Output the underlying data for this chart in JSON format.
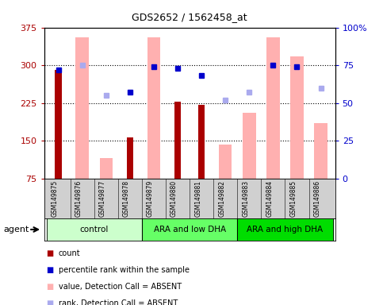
{
  "title": "GDS2652 / 1562458_at",
  "samples": [
    "GSM149875",
    "GSM149876",
    "GSM149877",
    "GSM149878",
    "GSM149879",
    "GSM149880",
    "GSM149881",
    "GSM149882",
    "GSM149883",
    "GSM149884",
    "GSM149885",
    "GSM149886"
  ],
  "groups": [
    {
      "label": "control",
      "color": "#ccffcc",
      "start": 0,
      "end": 3
    },
    {
      "label": "ARA and low DHA",
      "color": "#66ff66",
      "start": 4,
      "end": 7
    },
    {
      "label": "ARA and high DHA",
      "color": "#00dd00",
      "start": 8,
      "end": 11
    }
  ],
  "count_values": [
    290,
    null,
    null,
    157,
    null,
    228,
    222,
    null,
    null,
    null,
    null,
    null
  ],
  "count_color": "#aa0000",
  "absent_bar_values": [
    null,
    355,
    115,
    null,
    355,
    null,
    null,
    142,
    205,
    355,
    318,
    185
  ],
  "absent_bar_color": "#ffb0b0",
  "percentile_rank_values": [
    72,
    null,
    null,
    57,
    74,
    73,
    68,
    null,
    null,
    75,
    74,
    null
  ],
  "percentile_rank_color": "#0000cc",
  "absent_rank_values": [
    null,
    75,
    55,
    null,
    null,
    null,
    null,
    52,
    57,
    null,
    null,
    60
  ],
  "absent_rank_color": "#aaaaee",
  "ylim_left": [
    75,
    375
  ],
  "ylim_right": [
    0,
    100
  ],
  "yticks_left": [
    75,
    150,
    225,
    300,
    375
  ],
  "yticks_right": [
    0,
    25,
    50,
    75,
    100
  ],
  "ytick_labels_left": [
    "75",
    "150",
    "225",
    "300",
    "375"
  ],
  "ytick_labels_right": [
    "0",
    "25",
    "50",
    "75",
    "100%"
  ],
  "hlines": [
    150,
    225,
    300
  ],
  "bar_width": 0.55,
  "narrow_bar_width": 0.28,
  "agent_label": "agent",
  "legend_items": [
    {
      "label": "count",
      "color": "#aa0000"
    },
    {
      "label": "percentile rank within the sample",
      "color": "#0000cc"
    },
    {
      "label": "value, Detection Call = ABSENT",
      "color": "#ffb0b0"
    },
    {
      "label": "rank, Detection Call = ABSENT",
      "color": "#aaaaee"
    }
  ]
}
